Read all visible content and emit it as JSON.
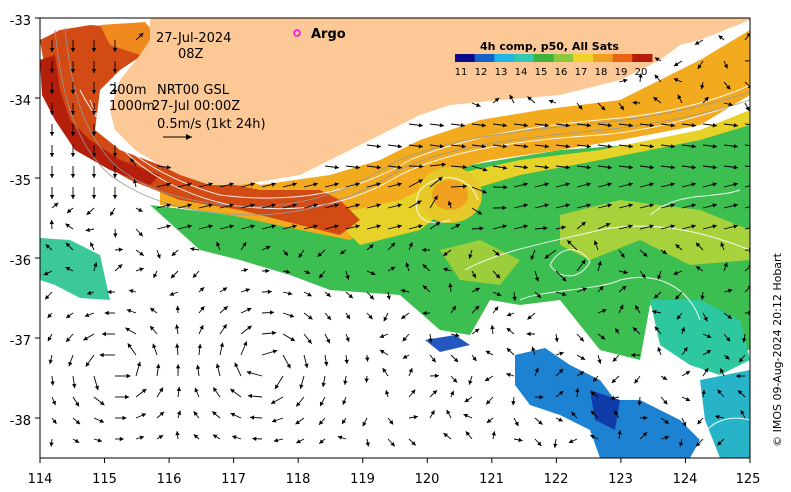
{
  "map": {
    "x_ticks": [
      "114",
      "115",
      "116",
      "117",
      "118",
      "119",
      "120",
      "121",
      "122",
      "123",
      "124",
      "125"
    ],
    "y_ticks": [
      "-33",
      "-34",
      "-35",
      "-36",
      "-37",
      "-38"
    ],
    "lon_range": [
      114,
      125
    ],
    "lat_range": [
      -38.5,
      -33
    ]
  },
  "annotations": {
    "date": "27-Jul-2024",
    "time": "08Z",
    "depth_label": "200m",
    "product": "NRT00 GSL",
    "depth2": "1000m",
    "product_time": "27-Jul 00:00Z",
    "scale_vector": "0.5m/s (1kt 24h)"
  },
  "argo": {
    "label": "Argo",
    "marker_color": "#ff00ff"
  },
  "colorbar": {
    "title": "4h comp, p50, All Sats",
    "labels": [
      "11",
      "12",
      "13",
      "14",
      "15",
      "16",
      "17",
      "18",
      "19",
      "20"
    ],
    "colors": [
      "#0a0a8c",
      "#1464c8",
      "#1eb4e6",
      "#32c8b4",
      "#3cb43c",
      "#8cc83c",
      "#f0d228",
      "#f0a01e",
      "#e66414",
      "#b41e0a"
    ]
  },
  "credit": "© IMOS 09-Aug-2024 20:12 Hobart",
  "colors": {
    "land": "#fbc896",
    "sea_mask": "#ffffff"
  }
}
